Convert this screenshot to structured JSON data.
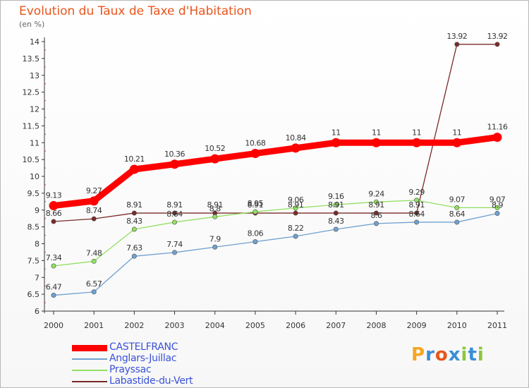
{
  "title": "Evolution du Taux de Taxe d'Habitation",
  "unit_label": "(en %)",
  "logo": {
    "letters": [
      {
        "ch": "P",
        "color": "#f5a623"
      },
      {
        "ch": "r",
        "color": "#3a8fd6"
      },
      {
        "ch": "o",
        "color": "#e8551c"
      },
      {
        "ch": "x",
        "color": "#3a8fd6"
      },
      {
        "ch": "i",
        "color": "#8cc63f"
      },
      {
        "ch": "t",
        "color": "#3a8fd6"
      },
      {
        "ch": "i",
        "color": "#8cc63f"
      }
    ]
  },
  "chart_data": {
    "type": "line",
    "title": "Evolution du Taux de Taxe d'Habitation",
    "ylabel": "(en %)",
    "xlabel": "",
    "ylim": [
      6,
      14
    ],
    "yticks": [
      "6",
      "6.5",
      "7",
      "7.5",
      "8",
      "8.5",
      "9",
      "9.5",
      "10",
      "10.5",
      "11",
      "11.5",
      "12",
      "12.5",
      "13",
      "13.5",
      "14"
    ],
    "categories": [
      "2000",
      "2001",
      "2002",
      "2003",
      "2004",
      "2005",
      "2006",
      "2007",
      "2008",
      "2009",
      "2010",
      "2011"
    ],
    "grid": false,
    "legend_position": "bottom-left",
    "series": [
      {
        "name": "CASTELFRANC",
        "color": "#ff0000",
        "values": [
          9.13,
          9.27,
          10.21,
          10.36,
          10.52,
          10.68,
          10.84,
          11,
          11,
          11,
          11,
          11.16
        ],
        "labels": [
          "9.13",
          "9.27",
          "10.21",
          "10.36",
          "10.52",
          "10.68",
          "10.84",
          "11",
          "11",
          "11",
          "11",
          "11.16"
        ]
      },
      {
        "name": "Anglars-Juillac",
        "color": "#6fa0d0",
        "values": [
          6.47,
          6.57,
          7.63,
          7.74,
          7.9,
          8.06,
          8.22,
          8.43,
          8.6,
          8.64,
          8.64,
          8.9
        ],
        "labels": [
          "6.47",
          "6.57",
          "7.63",
          "7.74",
          "7.9",
          "8.06",
          "8.22",
          "8.43",
          "8.6",
          "8.64",
          "8.64",
          "8.9"
        ]
      },
      {
        "name": "Prayssac",
        "color": "#90e060",
        "values": [
          7.34,
          7.48,
          8.43,
          8.64,
          8.8,
          8.95,
          9.06,
          9.16,
          9.24,
          9.29,
          9.07,
          9.07
        ],
        "labels": [
          "7.34",
          "7.48",
          "8.43",
          "8.64",
          "8.8",
          "8.95",
          "9.06",
          "9.16",
          "9.24",
          "9.29",
          "9.07",
          "9.07"
        ]
      },
      {
        "name": "Labastide-du-Vert",
        "color": "#7a2a2a",
        "values": [
          8.66,
          8.74,
          8.91,
          8.91,
          8.91,
          8.91,
          8.91,
          8.91,
          8.91,
          8.91,
          13.92,
          13.92
        ],
        "labels": [
          "8.66",
          "8.74",
          "8.91",
          "8.91",
          "8.91",
          "8.91",
          "8.91",
          "8.91",
          "8.91",
          "8.91",
          "13.92",
          "13.92"
        ]
      }
    ]
  }
}
